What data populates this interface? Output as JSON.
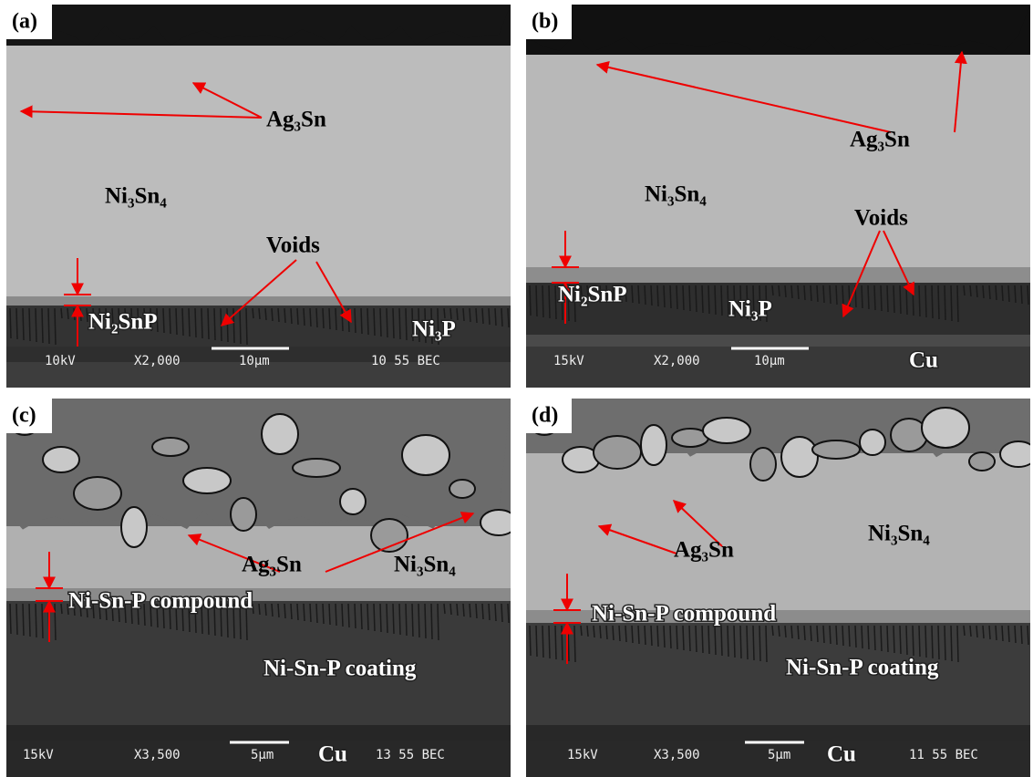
{
  "panels": [
    {
      "label": "(a)",
      "annotations": [
        "Ag₃Sn",
        "Ni₃Sn₄",
        "Voids",
        "Ni₂SnP",
        "Ni₃P"
      ],
      "info": [
        "10kV",
        "X2,000",
        "10μm",
        "10 55 BEC"
      ]
    },
    {
      "label": "(b)",
      "annotations": [
        "Ag₃Sn",
        "Ni₃Sn₄",
        "Voids",
        "Ni₂SnP",
        "Ni₃P",
        "Cu"
      ],
      "info": [
        "15kV",
        "X2,000",
        "10μm"
      ]
    },
    {
      "label": "(c)",
      "annotations": [
        "Ag₃Sn",
        "Ni₃Sn₄",
        "Ni-Sn-P compound",
        "Ni-Sn-P coating",
        "Cu"
      ],
      "info": [
        "15kV",
        "X3,500",
        "5μm",
        "13 55 BEC"
      ]
    },
    {
      "label": "(d)",
      "annotations": [
        "Ag₃Sn",
        "Ni₃Sn₄",
        "Ni-Sn-P compound",
        "Ni-Sn-P coating",
        "Cu"
      ],
      "info": [
        "15kV",
        "X3,500",
        "5μm",
        "11 55 BEC"
      ]
    }
  ]
}
